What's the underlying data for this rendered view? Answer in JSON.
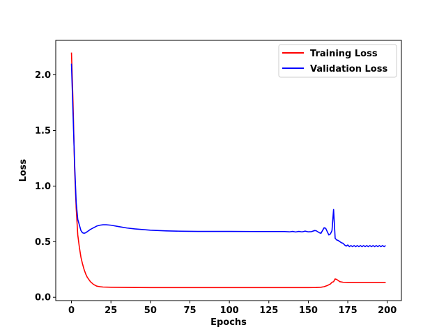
{
  "chart_data": {
    "type": "line",
    "title": "",
    "xlabel": "Epochs",
    "ylabel": "Loss",
    "xlim": [
      -9.95,
      208.95
    ],
    "ylim": [
      -0.03,
      2.31
    ],
    "xticks": [
      0,
      25,
      50,
      75,
      100,
      125,
      150,
      175,
      200
    ],
    "yticks": [
      0.0,
      0.5,
      1.0,
      1.5,
      2.0
    ],
    "xtick_labels": [
      "0",
      "25",
      "50",
      "75",
      "100",
      "125",
      "150",
      "175",
      "200"
    ],
    "ytick_labels": [
      "0.0",
      "0.5",
      "1.0",
      "1.5",
      "2.0"
    ],
    "grid": false,
    "legend_position": "top-right",
    "series": [
      {
        "name": "Training Loss",
        "color": "#ff0000",
        "x": [
          0,
          1,
          2,
          3,
          4,
          5,
          6,
          7,
          8,
          9,
          10,
          12,
          14,
          16,
          18,
          20,
          25,
          30,
          40,
          50,
          60,
          80,
          100,
          120,
          140,
          150,
          155,
          158,
          160,
          162,
          164,
          165,
          166,
          167,
          168,
          169,
          170,
          172,
          175,
          180,
          190,
          199
        ],
        "y": [
          2.2,
          1.75,
          1.15,
          0.8,
          0.56,
          0.45,
          0.36,
          0.3,
          0.25,
          0.21,
          0.18,
          0.14,
          0.115,
          0.1,
          0.095,
          0.092,
          0.09,
          0.089,
          0.088,
          0.087,
          0.087,
          0.087,
          0.087,
          0.087,
          0.087,
          0.087,
          0.088,
          0.09,
          0.095,
          0.105,
          0.12,
          0.135,
          0.14,
          0.165,
          0.16,
          0.15,
          0.14,
          0.135,
          0.134,
          0.133,
          0.133,
          0.133
        ]
      },
      {
        "name": "Validation Loss",
        "color": "#0000ff",
        "x": [
          0,
          1,
          2,
          3,
          4,
          5,
          6,
          7,
          8,
          9,
          10,
          12,
          14,
          16,
          18,
          20,
          22,
          25,
          30,
          35,
          40,
          50,
          60,
          70,
          80,
          100,
          120,
          135,
          138,
          140,
          142,
          144,
          146,
          148,
          150,
          152,
          154,
          155,
          157,
          158,
          159,
          160,
          161,
          162,
          163,
          164,
          165,
          166,
          167,
          168,
          169,
          170,
          171,
          172,
          173,
          174,
          175,
          176,
          177,
          178,
          179,
          180,
          181,
          182,
          183,
          184,
          185,
          186,
          187,
          188,
          189,
          190,
          191,
          192,
          193,
          194,
          195,
          196,
          197,
          198,
          199
        ],
        "y": [
          2.1,
          1.65,
          1.2,
          0.85,
          0.7,
          0.65,
          0.6,
          0.58,
          0.575,
          0.58,
          0.59,
          0.61,
          0.625,
          0.64,
          0.648,
          0.652,
          0.652,
          0.648,
          0.635,
          0.623,
          0.615,
          0.603,
          0.597,
          0.594,
          0.592,
          0.592,
          0.591,
          0.591,
          0.588,
          0.592,
          0.587,
          0.592,
          0.588,
          0.595,
          0.588,
          0.59,
          0.6,
          0.598,
          0.58,
          0.575,
          0.6,
          0.625,
          0.62,
          0.59,
          0.56,
          0.57,
          0.6,
          0.79,
          0.53,
          0.515,
          0.51,
          0.5,
          0.49,
          0.485,
          0.47,
          0.46,
          0.47,
          0.455,
          0.465,
          0.455,
          0.465,
          0.455,
          0.465,
          0.455,
          0.465,
          0.455,
          0.465,
          0.455,
          0.465,
          0.455,
          0.465,
          0.455,
          0.465,
          0.455,
          0.465,
          0.455,
          0.465,
          0.455,
          0.465,
          0.455,
          0.465
        ]
      }
    ]
  }
}
